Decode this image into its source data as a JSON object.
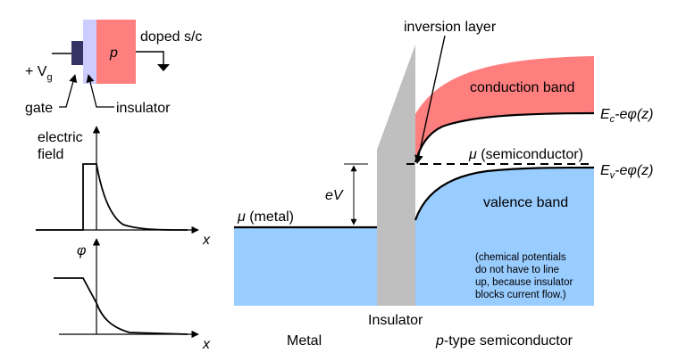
{
  "device": {
    "gate_label": "gate",
    "insulator_label": "insulator",
    "p_label": "p",
    "doped_label": "doped s/c",
    "vg_prefix": "+ V",
    "vg_sub": "g"
  },
  "field_plot": {
    "ylabel_line1": "electric",
    "ylabel_line2": "field",
    "xlabel": "x"
  },
  "phi_plot": {
    "ylabel": "φ",
    "xlabel": "x"
  },
  "band": {
    "inversion_label": "inversion layer",
    "conduction_label": "conduction band",
    "valence_label": "valence band",
    "mu_metal_sym": "μ",
    "mu_metal_text": " (metal)",
    "mu_sc_sym": "μ",
    "mu_sc_text": " (semiconductor)",
    "ev_label": "eV",
    "ec_E": "E",
    "ec_sub": "c",
    "ec_rest": "-eφ(z)",
    "evb_E": "E",
    "evb_sub": "v",
    "evb_rest": "-eφ(z)",
    "note_lines": [
      "(chemical potentials",
      "do not have to line",
      "up, because insulator",
      "blocks current flow.)"
    ],
    "metal_label": "Metal",
    "insulator_label": "Insulator",
    "sc_italic": "p",
    "sc_rest": "-type semiconductor"
  },
  "colors": {
    "gate": "#333366",
    "insulator_device": "#ccccff",
    "p_region": "#ff7f7f",
    "conduction": "#ff7f7f",
    "valence": "#99ccff",
    "metal": "#99ccff",
    "insulator_band": "#bfbfbf"
  }
}
